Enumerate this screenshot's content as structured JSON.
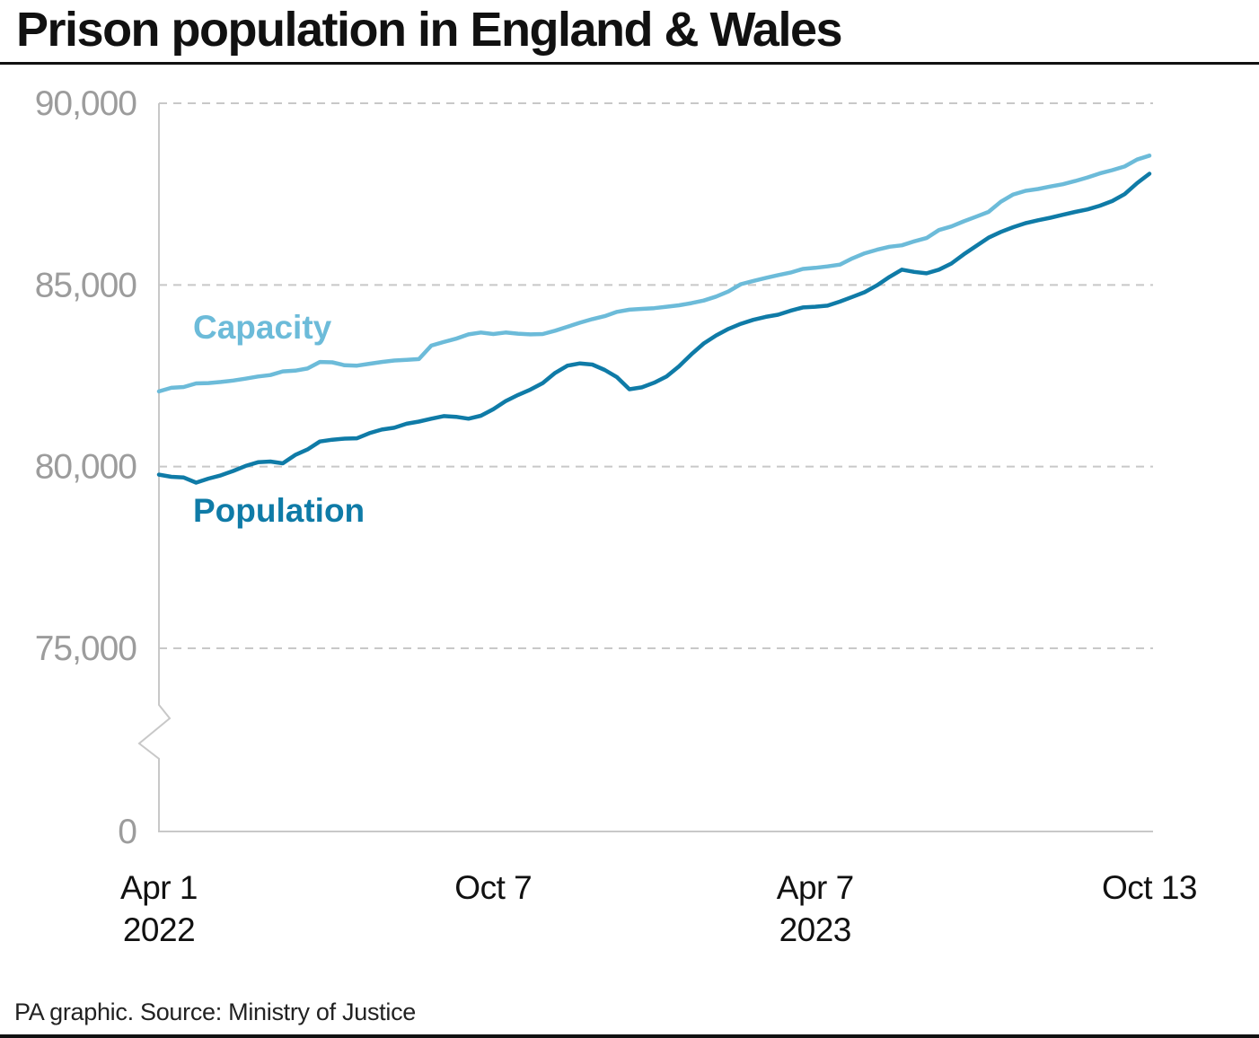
{
  "title": "Prison population in England & Wales",
  "source": "PA graphic. Source: Ministry of Justice",
  "colors": {
    "capacity": "#6cbbd9",
    "population": "#0f7ba7",
    "grid": "#c8c8c8",
    "axis": "#c8c8c8",
    "tick_text": "#9c9c9c"
  },
  "chart_data": {
    "type": "line",
    "title": "Prison population in England & Wales",
    "xlabel": "",
    "ylabel": "",
    "y_axis_break": true,
    "y_ticks": [
      {
        "value": 90000,
        "label": "90,000"
      },
      {
        "value": 85000,
        "label": "85,000"
      },
      {
        "value": 80000,
        "label": "80,000"
      },
      {
        "value": 75000,
        "label": "75,000"
      },
      {
        "value": 0,
        "label": "0"
      }
    ],
    "x_ticks": [
      {
        "week": 0,
        "line1": "Apr 1",
        "line2": "2022"
      },
      {
        "week": 27,
        "line1": "Oct 7",
        "line2": ""
      },
      {
        "week": 53,
        "line1": "Apr 7",
        "line2": "2023"
      },
      {
        "week": 80,
        "line1": "Oct 13",
        "line2": ""
      }
    ],
    "x_unit": "weeks since Apr 1 2022",
    "x_range": [
      0,
      80
    ],
    "series": [
      {
        "name": "Capacity",
        "x": [
          0,
          1,
          2,
          3,
          4,
          5,
          6,
          7,
          8,
          9,
          10,
          11,
          12,
          13,
          14,
          15,
          16,
          17,
          18,
          19,
          20,
          21,
          22,
          23,
          24,
          25,
          26,
          27,
          28,
          29,
          30,
          31,
          32,
          33,
          34,
          35,
          36,
          37,
          38,
          39,
          40,
          41,
          42,
          43,
          44,
          45,
          46,
          47,
          48,
          49,
          50,
          51,
          52,
          53,
          54,
          55,
          56,
          57,
          58,
          59,
          60,
          61,
          62,
          63,
          64,
          65,
          66,
          67,
          68,
          69,
          70,
          71,
          72,
          73,
          74,
          75,
          76,
          77,
          78,
          79,
          80
        ],
        "values": [
          82070,
          82170,
          82190,
          82290,
          82300,
          82330,
          82370,
          82420,
          82480,
          82520,
          82620,
          82640,
          82700,
          82880,
          82870,
          82790,
          82780,
          82830,
          82880,
          82920,
          82940,
          82960,
          83330,
          83430,
          83520,
          83640,
          83690,
          83650,
          83690,
          83660,
          83640,
          83650,
          83740,
          83850,
          83960,
          84060,
          84140,
          84260,
          84320,
          84340,
          84360,
          84400,
          84440,
          84500,
          84570,
          84680,
          84820,
          85020,
          85110,
          85190,
          85270,
          85340,
          85440,
          85470,
          85510,
          85560,
          85730,
          85870,
          85970,
          86050,
          86090,
          86200,
          86290,
          86510,
          86610,
          86750,
          86880,
          87010,
          87290,
          87490,
          87590,
          87640,
          87710,
          87770,
          87860,
          87960,
          88070,
          88160,
          88260,
          88450,
          88560
        ]
      },
      {
        "name": "Population",
        "x": [
          0,
          1,
          2,
          3,
          4,
          5,
          6,
          7,
          8,
          9,
          10,
          11,
          12,
          13,
          14,
          15,
          16,
          17,
          18,
          19,
          20,
          21,
          22,
          23,
          24,
          25,
          26,
          27,
          28,
          29,
          30,
          31,
          32,
          33,
          34,
          35,
          36,
          37,
          38,
          39,
          40,
          41,
          42,
          43,
          44,
          45,
          46,
          47,
          48,
          49,
          50,
          51,
          52,
          53,
          54,
          55,
          56,
          57,
          58,
          59,
          60,
          61,
          62,
          63,
          64,
          65,
          66,
          67,
          68,
          69,
          70,
          71,
          72,
          73,
          74,
          75,
          76,
          77,
          78,
          79,
          80
        ],
        "values": [
          79780,
          79720,
          79700,
          79560,
          79670,
          79760,
          79880,
          80020,
          80120,
          80140,
          80090,
          80320,
          80470,
          80690,
          80740,
          80770,
          80780,
          80920,
          81020,
          81070,
          81180,
          81240,
          81320,
          81390,
          81370,
          81320,
          81400,
          81580,
          81800,
          81970,
          82120,
          82300,
          82580,
          82780,
          82840,
          82810,
          82660,
          82460,
          82130,
          82180,
          82310,
          82480,
          82760,
          83090,
          83390,
          83610,
          83790,
          83930,
          84040,
          84120,
          84180,
          84290,
          84380,
          84400,
          84430,
          84540,
          84670,
          84800,
          84990,
          85220,
          85420,
          85360,
          85320,
          85420,
          85590,
          85840,
          86070,
          86300,
          86460,
          86590,
          86700,
          86780,
          86850,
          86930,
          87010,
          87080,
          87180,
          87310,
          87500,
          87800,
          88060
        ]
      }
    ]
  }
}
